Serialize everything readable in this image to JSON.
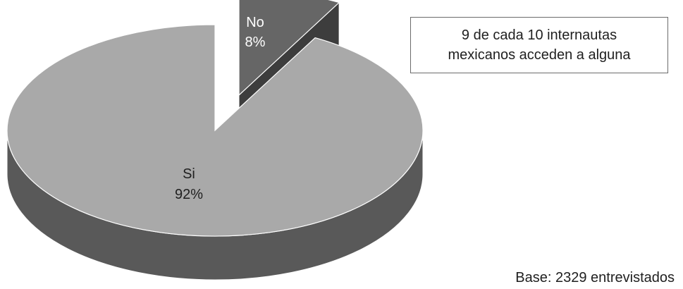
{
  "chart_data": {
    "type": "pie",
    "style": "3d-exploded",
    "slices": [
      {
        "label": "Si",
        "percent_label": "92%",
        "value": 92,
        "color": "#a9a9a9",
        "side_color": "#595959"
      },
      {
        "label": "No",
        "percent_label": "8%",
        "value": 8,
        "color": "#666666",
        "side_color": "#3d3d3d"
      }
    ],
    "annotation": {
      "line1": "9 de cada 10 internautas",
      "line2": "mexicanos acceden a alguna"
    },
    "base_note": "Base: 2329 entrevistados",
    "colors": {
      "edge": "#ffffff",
      "label_dark": "#1f1f1f",
      "label_light": "#ffffff",
      "box_border": "#6b6b6b"
    }
  }
}
